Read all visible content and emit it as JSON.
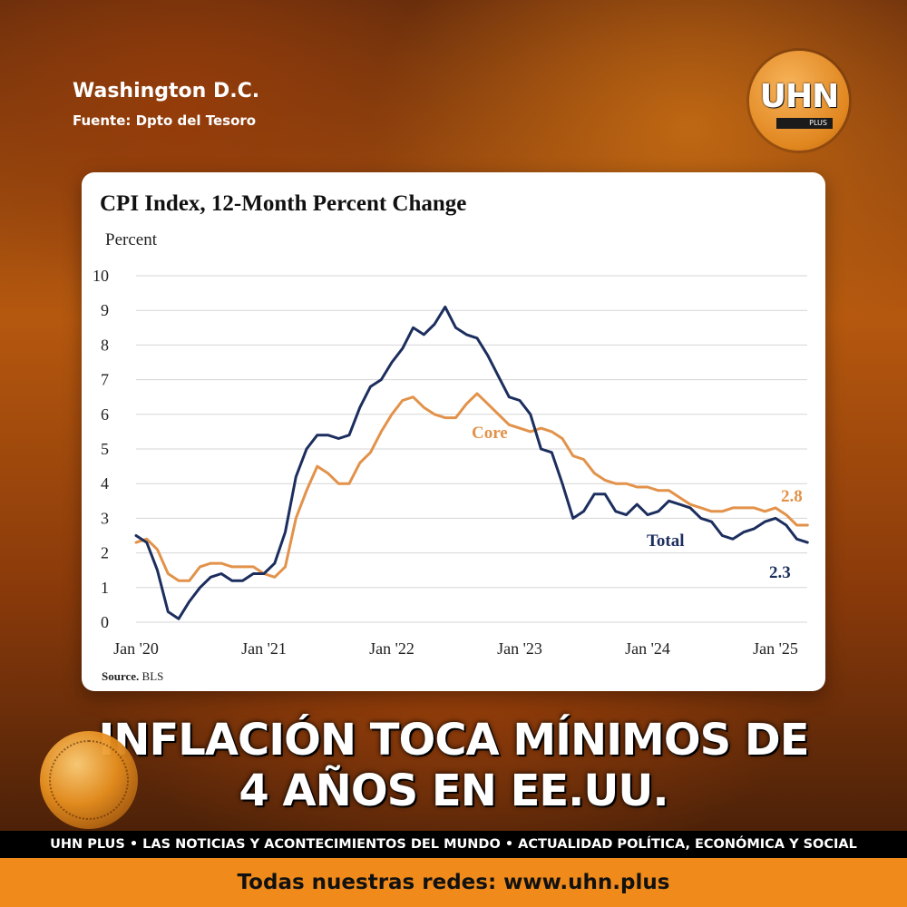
{
  "header": {
    "location": "Washington D.C.",
    "source": "Fuente: Dpto del Tesoro"
  },
  "logo": {
    "text": "UHN",
    "sub": "PLUS"
  },
  "headline": {
    "line1": "INFLACIÓN TOCA MÍNIMOS DE",
    "line2": "4 AÑOS EN EE.UU."
  },
  "tagline": "UHN PLUS • LAS NOTICIAS Y ACONTECIMIENTOS DEL MUNDO • ACTUALIDAD POLÍTICA, ECONÓMICA Y SOCIAL",
  "footer": "Todas nuestras redes: www.uhn.plus",
  "colors": {
    "core": "#e2924a",
    "total": "#1c2e5e",
    "accent": "#f08a1a"
  },
  "chart_data": {
    "type": "line",
    "title": "CPI Index, 12-Month Percent Change",
    "ylabel": "Percent",
    "source_label": "Source.",
    "source_value": "BLS",
    "ylim": [
      0,
      10
    ],
    "yticks": [
      "0",
      "1",
      "2",
      "3",
      "4",
      "5",
      "6",
      "7",
      "8",
      "9",
      "10"
    ],
    "xticks": [
      "Jan '20",
      "Jan '21",
      "Jan '22",
      "Jan '23",
      "Jan '24",
      "Jan '25"
    ],
    "grid": true,
    "x_start": "2020-01",
    "series": [
      {
        "name": "Core",
        "end_label": "2.8",
        "values": [
          2.3,
          2.4,
          2.1,
          1.4,
          1.2,
          1.2,
          1.6,
          1.7,
          1.7,
          1.6,
          1.6,
          1.6,
          1.4,
          1.3,
          1.6,
          3.0,
          3.8,
          4.5,
          4.3,
          4.0,
          4.0,
          4.6,
          4.9,
          5.5,
          6.0,
          6.4,
          6.5,
          6.2,
          6.0,
          5.9,
          5.9,
          6.3,
          6.6,
          6.3,
          6.0,
          5.7,
          5.6,
          5.5,
          5.6,
          5.5,
          5.3,
          4.8,
          4.7,
          4.3,
          4.1,
          4.0,
          4.0,
          3.9,
          3.9,
          3.8,
          3.8,
          3.6,
          3.4,
          3.3,
          3.2,
          3.2,
          3.3,
          3.3,
          3.3,
          3.2,
          3.3,
          3.1,
          2.8,
          2.8
        ]
      },
      {
        "name": "Total",
        "end_label": "2.3",
        "values": [
          2.5,
          2.3,
          1.5,
          0.3,
          0.1,
          0.6,
          1.0,
          1.3,
          1.4,
          1.2,
          1.2,
          1.4,
          1.4,
          1.7,
          2.6,
          4.2,
          5.0,
          5.4,
          5.4,
          5.3,
          5.4,
          6.2,
          6.8,
          7.0,
          7.5,
          7.9,
          8.5,
          8.3,
          8.6,
          9.1,
          8.5,
          8.3,
          8.2,
          7.7,
          7.1,
          6.5,
          6.4,
          6.0,
          5.0,
          4.9,
          4.0,
          3.0,
          3.2,
          3.7,
          3.7,
          3.2,
          3.1,
          3.4,
          3.1,
          3.2,
          3.5,
          3.4,
          3.3,
          3.0,
          2.9,
          2.5,
          2.4,
          2.6,
          2.7,
          2.9,
          3.0,
          2.8,
          2.4,
          2.3
        ]
      }
    ],
    "annotations": [
      "Core",
      "Total"
    ]
  }
}
